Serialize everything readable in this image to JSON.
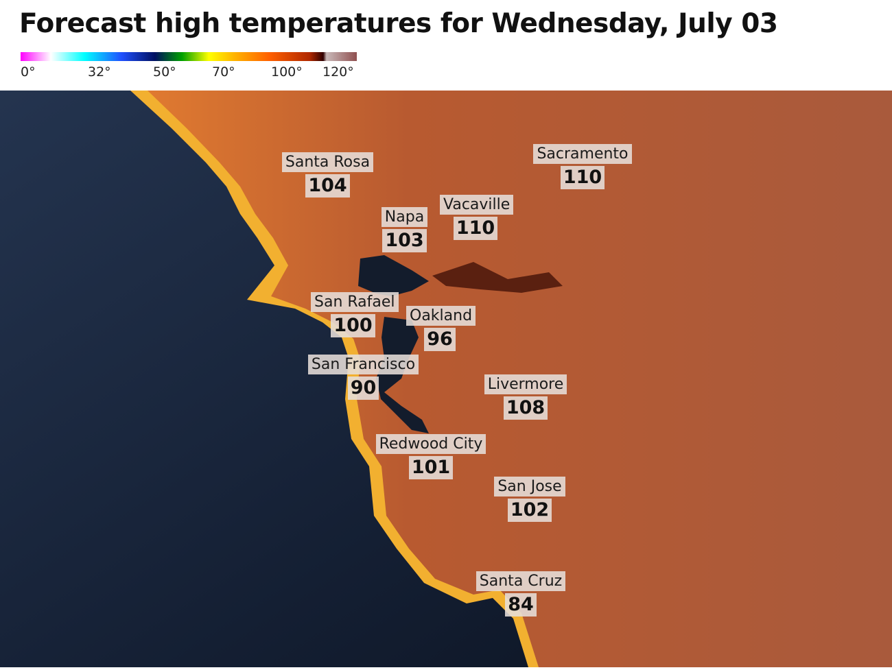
{
  "title": "Forecast high temperatures for Wednesday, July 03",
  "legend": {
    "ticks": [
      "0°",
      "32°",
      "50°",
      "70°",
      "100°",
      "120°"
    ],
    "colors": [
      "#ff00ff",
      "#ffffff",
      "#00ffff",
      "#2040ff",
      "#001060",
      "#00a000",
      "#ffff00",
      "#ff8000",
      "#c03000",
      "#300000",
      "#c0b0b0",
      "#905050"
    ]
  },
  "map": {
    "ocean_color": "#15233a",
    "land_color": "#b85a30",
    "cities": [
      {
        "name": "Santa Rosa",
        "temp": "104"
      },
      {
        "name": "Sacramento",
        "temp": "110"
      },
      {
        "name": "Vacaville",
        "temp": "110"
      },
      {
        "name": "Napa",
        "temp": "103"
      },
      {
        "name": "San Rafael",
        "temp": "100"
      },
      {
        "name": "Oakland",
        "temp": "96"
      },
      {
        "name": "San Francisco",
        "temp": "90"
      },
      {
        "name": "Livermore",
        "temp": "108"
      },
      {
        "name": "Redwood City",
        "temp": "101"
      },
      {
        "name": "San Jose",
        "temp": "102"
      },
      {
        "name": "Santa Cruz",
        "temp": "84"
      }
    ]
  }
}
